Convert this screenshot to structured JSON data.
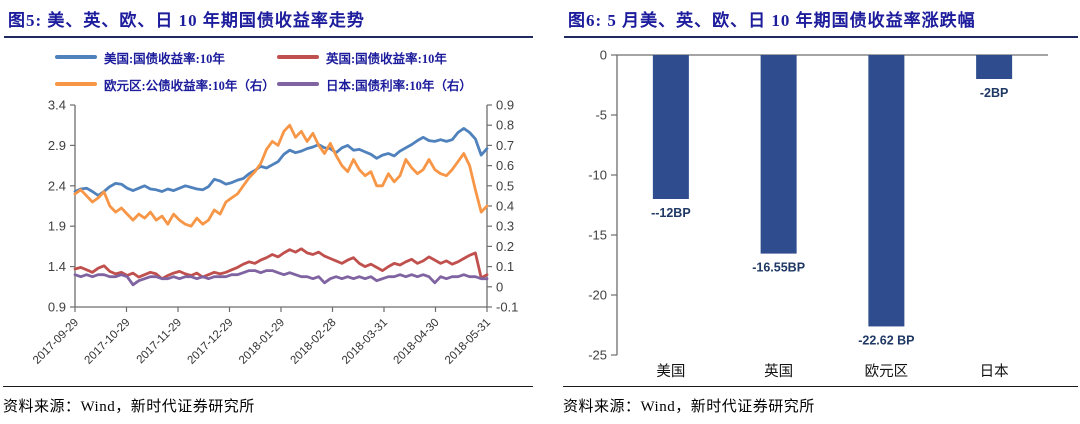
{
  "figure5": {
    "title": "图5:  美、英、欧、日 10 年期国债收益率走势",
    "source": "资料来源：Wind，新时代证券研究所"
  },
  "figure6": {
    "title": "图6:  5 月美、英、欧、日 10 年期国债收益率涨跌幅",
    "source": "资料来源：Wind，新时代证券研究所"
  },
  "colors": {
    "title_navy": "#1c1c9c",
    "axis_gray": "#6e6e6e",
    "tick_text": "#404040",
    "bar_navy": "#2f4c8f",
    "bar_label_navy": "#1f3864"
  },
  "chart_data": [
    {
      "type": "line",
      "title": "美、英、欧、日 10 年期国债收益率走势",
      "x_tick_labels": [
        "2017-09-29",
        "2017-10-29",
        "2017-11-29",
        "2017-12-29",
        "2018-01-29",
        "2018-02-28",
        "2018-03-31",
        "2018-04-30",
        "2018-05-31"
      ],
      "left_axis": {
        "ticks": [
          "3.4",
          "2.9",
          "2.4",
          "1.9",
          "1.4",
          "0.9"
        ],
        "range": [
          0.9,
          3.4
        ]
      },
      "right_axis": {
        "ticks": [
          "0.9",
          "0.8",
          "0.7",
          "0.6",
          "0.5",
          "0.4",
          "0.3",
          "0.2",
          "0.1",
          "0",
          "-0.1"
        ],
        "range": [
          -0.1,
          0.9
        ]
      },
      "grid": false,
      "legend_position": "top",
      "series": [
        {
          "name": "美国:国债收益率:10年",
          "axis": "left",
          "color": "#4f81bd",
          "values": [
            2.33,
            2.36,
            2.37,
            2.33,
            2.28,
            2.33,
            2.39,
            2.43,
            2.42,
            2.37,
            2.34,
            2.37,
            2.4,
            2.36,
            2.35,
            2.33,
            2.36,
            2.34,
            2.37,
            2.4,
            2.38,
            2.36,
            2.35,
            2.39,
            2.48,
            2.46,
            2.42,
            2.44,
            2.47,
            2.49,
            2.55,
            2.59,
            2.64,
            2.62,
            2.66,
            2.7,
            2.79,
            2.84,
            2.81,
            2.83,
            2.86,
            2.88,
            2.91,
            2.87,
            2.86,
            2.81,
            2.87,
            2.9,
            2.84,
            2.85,
            2.82,
            2.79,
            2.74,
            2.78,
            2.8,
            2.77,
            2.83,
            2.87,
            2.91,
            2.96,
            3.0,
            2.96,
            2.95,
            2.97,
            2.95,
            2.97,
            3.06,
            3.11,
            3.06,
            2.98,
            2.78,
            2.86
          ]
        },
        {
          "name": "英国:国债收益率:10年",
          "axis": "left",
          "color": "#c0504d",
          "values": [
            1.37,
            1.39,
            1.36,
            1.33,
            1.38,
            1.41,
            1.34,
            1.31,
            1.33,
            1.29,
            1.32,
            1.27,
            1.3,
            1.33,
            1.31,
            1.25,
            1.29,
            1.32,
            1.34,
            1.31,
            1.29,
            1.32,
            1.27,
            1.3,
            1.33,
            1.31,
            1.33,
            1.36,
            1.39,
            1.43,
            1.46,
            1.44,
            1.48,
            1.51,
            1.55,
            1.52,
            1.57,
            1.61,
            1.58,
            1.62,
            1.57,
            1.55,
            1.58,
            1.53,
            1.5,
            1.47,
            1.44,
            1.48,
            1.51,
            1.44,
            1.4,
            1.43,
            1.39,
            1.35,
            1.4,
            1.44,
            1.42,
            1.46,
            1.49,
            1.44,
            1.47,
            1.52,
            1.48,
            1.44,
            1.47,
            1.43,
            1.46,
            1.5,
            1.54,
            1.57,
            1.26,
            1.3
          ]
        },
        {
          "name": "欧元区:公债收益率:10年（右）",
          "axis": "right",
          "color": "#f79646",
          "values": [
            0.46,
            0.48,
            0.45,
            0.42,
            0.44,
            0.47,
            0.4,
            0.37,
            0.39,
            0.36,
            0.33,
            0.36,
            0.34,
            0.37,
            0.33,
            0.35,
            0.31,
            0.36,
            0.33,
            0.31,
            0.3,
            0.34,
            0.31,
            0.33,
            0.38,
            0.36,
            0.42,
            0.44,
            0.46,
            0.5,
            0.54,
            0.57,
            0.61,
            0.68,
            0.72,
            0.7,
            0.77,
            0.8,
            0.74,
            0.77,
            0.72,
            0.76,
            0.7,
            0.66,
            0.71,
            0.65,
            0.6,
            0.57,
            0.63,
            0.58,
            0.55,
            0.57,
            0.5,
            0.5,
            0.56,
            0.52,
            0.55,
            0.63,
            0.59,
            0.56,
            0.58,
            0.63,
            0.58,
            0.56,
            0.55,
            0.58,
            0.62,
            0.66,
            0.6,
            0.48,
            0.37,
            0.4
          ]
        },
        {
          "name": "日本:国债利率:10年（右）",
          "axis": "right",
          "color": "#8064a2",
          "values": [
            0.06,
            0.05,
            0.06,
            0.05,
            0.06,
            0.06,
            0.05,
            0.05,
            0.06,
            0.05,
            0.01,
            0.03,
            0.04,
            0.05,
            0.05,
            0.04,
            0.04,
            0.05,
            0.04,
            0.05,
            0.05,
            0.04,
            0.05,
            0.04,
            0.05,
            0.05,
            0.05,
            0.06,
            0.06,
            0.07,
            0.08,
            0.08,
            0.07,
            0.08,
            0.08,
            0.07,
            0.06,
            0.07,
            0.06,
            0.05,
            0.05,
            0.04,
            0.05,
            0.02,
            0.04,
            0.05,
            0.04,
            0.05,
            0.04,
            0.05,
            0.04,
            0.05,
            0.03,
            0.04,
            0.05,
            0.05,
            0.06,
            0.05,
            0.06,
            0.05,
            0.06,
            0.05,
            0.02,
            0.05,
            0.04,
            0.05,
            0.05,
            0.06,
            0.05,
            0.05,
            0.04,
            0.04
          ]
        }
      ]
    },
    {
      "type": "bar",
      "title": "5 月美、英、欧、日 10 年期国债收益率涨跌幅",
      "categories": [
        "美国",
        "英国",
        "欧元区",
        "日本"
      ],
      "values": [
        -12,
        -16.55,
        -22.62,
        -2
      ],
      "bar_labels": [
        "--12BP",
        "-16.55BP",
        "-22.62 BP",
        "-2BP"
      ],
      "y_ticks": [
        "0",
        "-5",
        "-10",
        "-15",
        "-20",
        "-25"
      ],
      "ylim": [
        -25,
        0
      ],
      "grid": false,
      "bar_color": "#2f4c8f"
    }
  ]
}
